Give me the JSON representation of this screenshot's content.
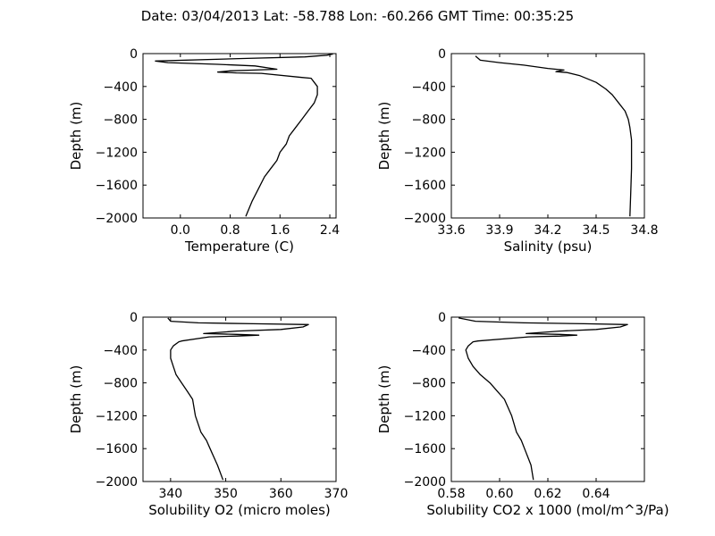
{
  "header": {
    "title": "Date: 03/04/2013  Lat:  -58.788 Lon:  -60.266  GMT Time: 00:35:25"
  },
  "chart_data": [
    {
      "type": "line",
      "xlabel": "Temperature (C)",
      "ylabel": "Depth (m)",
      "xlim": [
        -0.6,
        2.5
      ],
      "ylim": [
        -2000,
        0
      ],
      "xticks": [
        0.0,
        0.8,
        1.6,
        2.4
      ],
      "xtick_labels": [
        "0.0",
        "0.8",
        "1.6",
        "2.4"
      ],
      "yticks": [
        0,
        -400,
        -800,
        -1200,
        -1600,
        -2000
      ],
      "ytick_labels": [
        "0",
        "−400",
        "−800",
        "−1200",
        "−1600",
        "−2000"
      ],
      "grid": false,
      "legend": "none",
      "color": "#000000",
      "series": [
        {
          "x": [
            2.45,
            2.35,
            2.0,
            1.0,
            -0.4,
            -0.2,
            0.6,
            1.2,
            1.55,
            1.2,
            0.8,
            0.6,
            0.9,
            1.3,
            1.95,
            2.1,
            2.15,
            2.2,
            2.2,
            2.15,
            2.05,
            1.95,
            1.85,
            1.75,
            1.7,
            1.6,
            1.55,
            1.45,
            1.35,
            1.25,
            1.15,
            1.05
          ],
          "y": [
            -5,
            -20,
            -40,
            -60,
            -90,
            -110,
            -130,
            -150,
            -190,
            -200,
            -210,
            -225,
            -235,
            -240,
            -290,
            -300,
            -350,
            -400,
            -500,
            -600,
            -700,
            -800,
            -900,
            -1000,
            -1100,
            -1200,
            -1300,
            -1400,
            -1500,
            -1650,
            -1800,
            -1980
          ]
        }
      ]
    },
    {
      "type": "line",
      "xlabel": "Salinity (psu)",
      "ylabel": "Depth (m)",
      "xlim": [
        33.6,
        34.8
      ],
      "ylim": [
        -2000,
        0
      ],
      "xticks": [
        33.6,
        33.9,
        34.2,
        34.5,
        34.8
      ],
      "xtick_labels": [
        "33.6",
        "33.9",
        "34.2",
        "34.5",
        "34.8"
      ],
      "yticks": [
        0,
        -400,
        -800,
        -1200,
        -1600,
        -2000
      ],
      "ytick_labels": [
        "0",
        "−400",
        "−800",
        "−1200",
        "−1600",
        "−2000"
      ],
      "grid": false,
      "legend": "none",
      "color": "#000000",
      "series": [
        {
          "x": [
            33.75,
            33.78,
            33.9,
            34.05,
            34.2,
            34.3,
            34.25,
            34.32,
            34.4,
            34.5,
            34.56,
            34.6,
            34.64,
            34.68,
            34.7,
            34.71,
            34.72,
            34.72,
            34.72,
            34.715,
            34.71
          ],
          "y": [
            -30,
            -80,
            -110,
            -140,
            -180,
            -200,
            -220,
            -230,
            -270,
            -350,
            -430,
            -500,
            -600,
            -700,
            -800,
            -900,
            -1050,
            -1200,
            -1400,
            -1700,
            -1980
          ]
        }
      ]
    },
    {
      "type": "line",
      "xlabel": "Solubility O2 (micro moles)",
      "ylabel": "Depth (m)",
      "xlim": [
        335,
        370
      ],
      "ylim": [
        -2000,
        0
      ],
      "xticks": [
        340,
        350,
        360,
        370
      ],
      "xtick_labels": [
        "340",
        "350",
        "360",
        "370"
      ],
      "yticks": [
        0,
        -400,
        -800,
        -1200,
        -1600,
        -2000
      ],
      "ytick_labels": [
        "0",
        "−400",
        "−800",
        "−1200",
        "−1600",
        "−2000"
      ],
      "grid": false,
      "legend": "none",
      "color": "#000000",
      "series": [
        {
          "x": [
            339.5,
            340.0,
            345.0,
            355.0,
            365.0,
            364.0,
            360.0,
            352.0,
            346.0,
            352.0,
            356.0,
            352.0,
            347.0,
            342.0,
            341.5,
            340.5,
            340.0,
            340.0,
            340.5,
            341.0,
            342.0,
            343.0,
            344.0,
            344.5,
            345.5,
            346.5,
            347.5,
            348.5,
            349.5
          ],
          "y": [
            -10,
            -50,
            -70,
            -80,
            -90,
            -120,
            -150,
            -170,
            -200,
            -210,
            -220,
            -230,
            -240,
            -290,
            -300,
            -350,
            -400,
            -500,
            -600,
            -700,
            -800,
            -900,
            -1000,
            -1200,
            -1400,
            -1500,
            -1650,
            -1800,
            -1980
          ]
        }
      ]
    },
    {
      "type": "line",
      "xlabel": "Solubility CO2 x 1000 (mol/m^3/Pa)",
      "ylabel": "Depth (m)",
      "xlim": [
        0.58,
        0.66
      ],
      "ylim": [
        -2000,
        0
      ],
      "xticks": [
        0.58,
        0.6,
        0.62,
        0.64
      ],
      "xtick_labels": [
        "0.58",
        "0.60",
        "0.62",
        "0.64"
      ],
      "yticks": [
        0,
        -400,
        -800,
        -1200,
        -1600,
        -2000
      ],
      "ytick_labels": [
        "0",
        "−400",
        "−800",
        "−1200",
        "−1600",
        "−2000"
      ],
      "grid": false,
      "legend": "none",
      "color": "#000000",
      "series": [
        {
          "x": [
            0.583,
            0.59,
            0.61,
            0.635,
            0.653,
            0.65,
            0.64,
            0.625,
            0.611,
            0.625,
            0.632,
            0.625,
            0.612,
            0.591,
            0.589,
            0.587,
            0.586,
            0.587,
            0.589,
            0.592,
            0.596,
            0.599,
            0.602,
            0.605,
            0.607,
            0.609,
            0.611,
            0.613,
            0.614
          ],
          "y": [
            -10,
            -50,
            -70,
            -80,
            -90,
            -120,
            -150,
            -170,
            -200,
            -210,
            -220,
            -230,
            -240,
            -290,
            -300,
            -350,
            -400,
            -500,
            -600,
            -700,
            -800,
            -900,
            -1000,
            -1200,
            -1400,
            -1500,
            -1650,
            -1800,
            -1980
          ]
        }
      ]
    }
  ]
}
